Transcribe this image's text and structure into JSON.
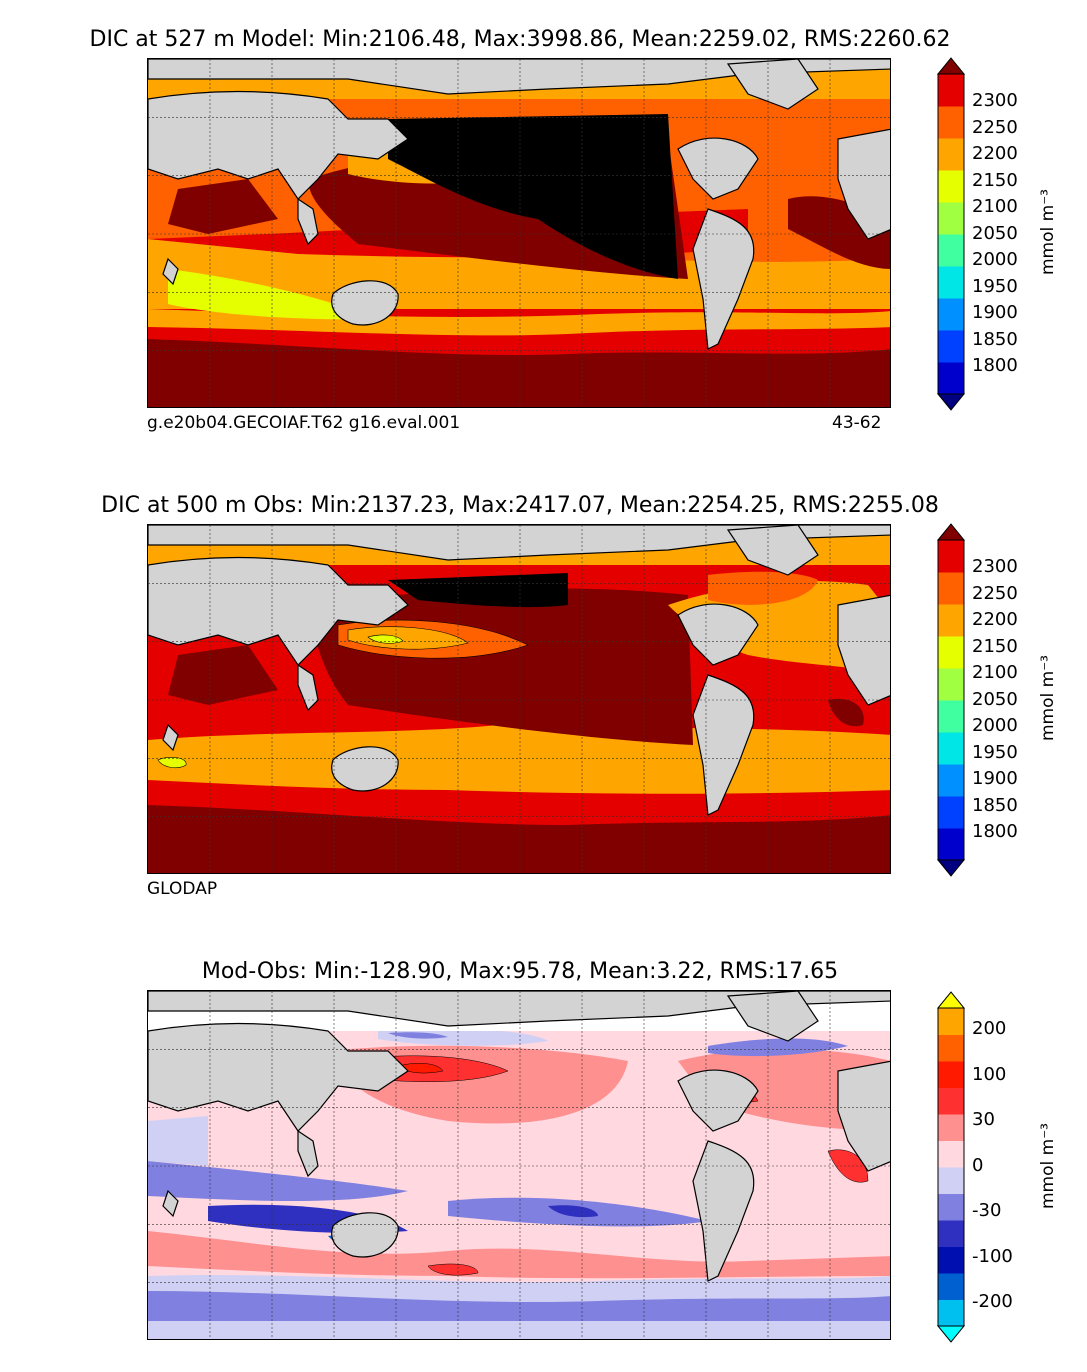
{
  "panels": [
    {
      "id": "model",
      "title": "DIC at 527 m Model: Min:2106.48, Max:3998.86, Mean:2259.02, RMS:2260.62",
      "caption_left": "g.e20b04.GECOIAF.T62 g16.eval.001",
      "caption_right": "43-62",
      "colorbar": {
        "unit": "mmol m⁻³",
        "ticks": [
          "2300",
          "2250",
          "2200",
          "2150",
          "2100",
          "2050",
          "2000",
          "1950",
          "1900",
          "1850",
          "1800"
        ],
        "colors": [
          "#000080",
          "#0000cd",
          "#0040ff",
          "#0090ff",
          "#00e5e5",
          "#40ffa0",
          "#a0ff40",
          "#e5ff00",
          "#ffa500",
          "#ff6000",
          "#e50000",
          "#800000"
        ]
      }
    },
    {
      "id": "obs",
      "title": "DIC at 500 m Obs: Min:2137.23, Max:2417.07, Mean:2254.25, RMS:2255.08",
      "caption_left": "GLODAP",
      "colorbar": {
        "unit": "mmol m⁻³",
        "ticks": [
          "2300",
          "2250",
          "2200",
          "2150",
          "2100",
          "2050",
          "2000",
          "1950",
          "1900",
          "1850",
          "1800"
        ],
        "colors": [
          "#000080",
          "#0000cd",
          "#0040ff",
          "#0090ff",
          "#00e5e5",
          "#40ffa0",
          "#a0ff40",
          "#e5ff00",
          "#ffa500",
          "#ff6000",
          "#e50000",
          "#800000"
        ]
      }
    },
    {
      "id": "diff",
      "title": "Mod-Obs: Min:-128.90, Max:95.78, Mean:3.22, RMS:17.65",
      "colorbar": {
        "unit": "mmol m⁻³",
        "ticks": [
          "200",
          "100",
          "30",
          "0",
          "-30",
          "-100",
          "-200"
        ],
        "colors": [
          "#00ffff",
          "#00c0f0",
          "#0060d0",
          "#0010b0",
          "#3030c0",
          "#8080e0",
          "#d0d0f4",
          "#ffd8e0",
          "#ff9090",
          "#ff3030",
          "#ff1a00",
          "#ff6000",
          "#ffa500",
          "#ffff00"
        ]
      }
    }
  ],
  "colors": {
    "land": "#d3d3d3",
    "high": "#000000"
  }
}
